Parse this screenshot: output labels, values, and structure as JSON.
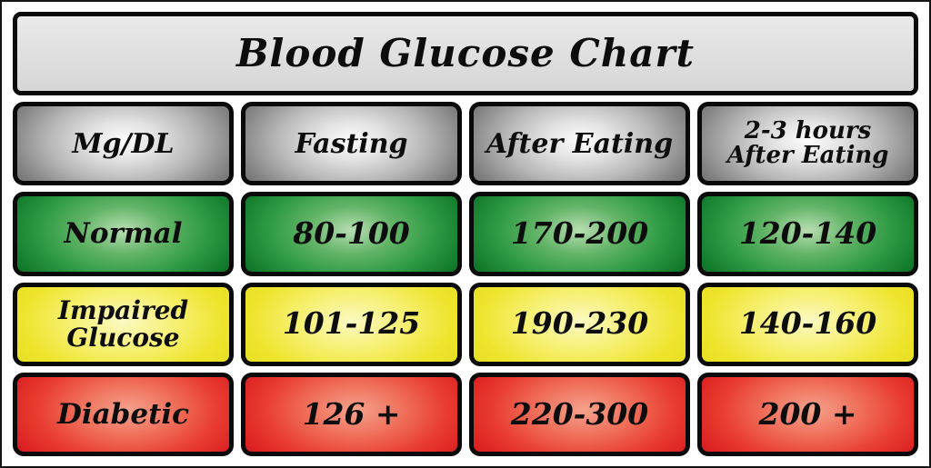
{
  "title": {
    "text": "Blood Glucose Chart"
  },
  "headers": [
    {
      "lines": [
        "Mg/DL"
      ]
    },
    {
      "lines": [
        "Fasting"
      ]
    },
    {
      "lines": [
        "After Eating"
      ]
    },
    {
      "lines": [
        "2-3 hours",
        "After Eating"
      ]
    }
  ],
  "rows": [
    {
      "label_lines": [
        "Normal"
      ],
      "values": [
        "80-100",
        "170-200",
        "120-140"
      ]
    },
    {
      "label_lines": [
        "Impaired",
        "Glucose"
      ],
      "values": [
        "101-125",
        "190-230",
        "140-160"
      ]
    },
    {
      "label_lines": [
        "Diabetic"
      ],
      "values": [
        "126 +",
        "220-300",
        "200 +"
      ]
    }
  ],
  "colors": {
    "title_bg": "#e2e2e2",
    "header_gray": "#8a8a8a",
    "normal_green": "#2d9a43",
    "impaired_yellow": "#eee42c",
    "diabetic_red": "#e02423",
    "border_black": "#0a0a0a"
  },
  "chart_data": {
    "type": "table",
    "title": "Blood Glucose Chart",
    "unit": "Mg/DL",
    "columns": [
      "Mg/DL",
      "Fasting",
      "After Eating",
      "2-3 hours After Eating"
    ],
    "rows": [
      [
        "Normal",
        "80-100",
        "170-200",
        "120-140"
      ],
      [
        "Impaired Glucose",
        "101-125",
        "190-230",
        "140-160"
      ],
      [
        "Diabetic",
        "126 +",
        "220-300",
        "200 +"
      ]
    ],
    "row_colors": [
      "green",
      "yellow",
      "red"
    ]
  }
}
